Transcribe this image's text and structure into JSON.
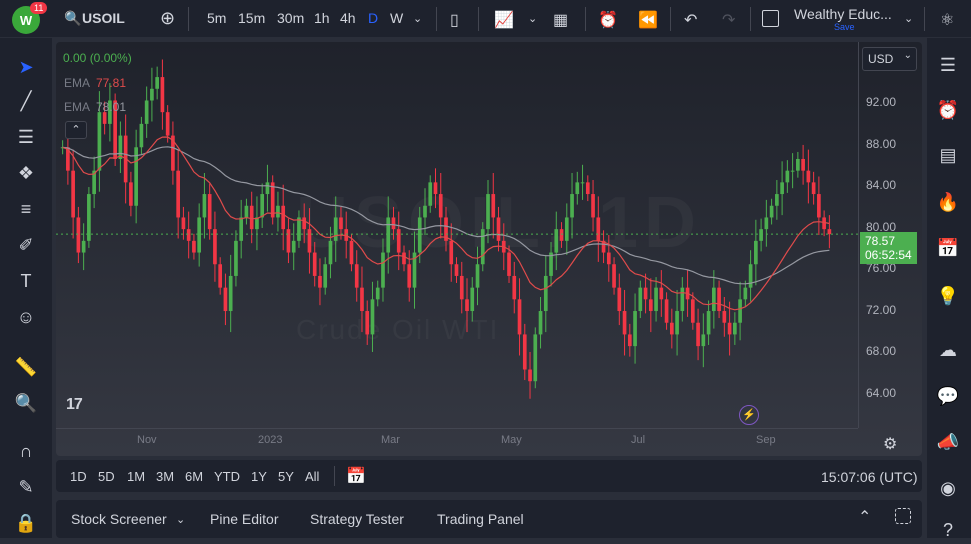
{
  "header": {
    "notification_count": "11",
    "symbol": "USOIL",
    "intervals": [
      "5m",
      "15m",
      "30m",
      "1h",
      "4h",
      "D",
      "W"
    ],
    "active_interval": "D",
    "layout_name": "Wealthy Educ...",
    "save_label": "Save"
  },
  "legend": {
    "change": "0.00 (0.00%)",
    "ema1_label": "EMA",
    "ema1_value": "77.81",
    "ema2_label": "EMA",
    "ema2_value": "78.01"
  },
  "price_axis": {
    "currency": "USD",
    "labels": [
      "92.00",
      "88.00",
      "84.00",
      "80.00",
      "76.00",
      "72.00",
      "68.00",
      "64.00"
    ],
    "current_price": "78.57",
    "countdown": "06:52:54"
  },
  "time_axis": {
    "labels": [
      "Nov",
      "2023",
      "Mar",
      "May",
      "Jul",
      "Sep"
    ]
  },
  "timeframes": [
    "1D",
    "5D",
    "1M",
    "3M",
    "6M",
    "YTD",
    "1Y",
    "5Y",
    "All"
  ],
  "clock": "15:07:06 (UTC)",
  "panels": [
    "Stock Screener",
    "Pine Editor",
    "Strategy Tester",
    "Trading Panel"
  ],
  "watermark": {
    "line1": "USOIL, 1D",
    "line2": "Crude Oil WTI"
  },
  "colors": {
    "up": "#26a69a",
    "up_bright": "#4caf50",
    "down": "#f23645",
    "ema_fast": "#e04b4b",
    "ema_slow": "#9598a1",
    "price_tag": "#4caf50"
  },
  "chart_data": {
    "type": "candlestick",
    "ylim": [
      62,
      95
    ],
    "close": [
      86,
      84,
      80,
      77,
      78,
      82,
      84,
      89,
      88,
      90,
      85,
      87,
      83,
      81,
      86,
      88,
      90,
      91,
      92,
      89,
      87,
      84,
      80,
      79,
      78,
      77,
      80,
      82,
      79,
      76,
      74,
      72,
      75,
      78,
      80,
      81,
      79,
      80,
      82,
      83,
      80,
      81,
      79,
      77,
      78,
      80,
      79,
      77,
      75,
      74,
      76,
      78,
      80,
      79,
      78,
      76,
      74,
      72,
      70,
      73,
      74,
      77,
      80,
      79,
      77,
      76,
      74,
      77,
      80,
      81,
      83,
      82,
      80,
      78,
      76,
      75,
      73,
      72,
      74,
      76,
      79,
      82,
      80,
      78,
      77,
      75,
      73,
      70,
      67,
      66,
      70,
      72,
      75,
      77,
      79,
      78,
      80,
      82,
      83,
      83,
      82,
      80,
      78,
      77,
      76,
      74,
      72,
      70,
      69,
      72,
      74,
      73,
      72,
      74,
      73,
      71,
      70,
      72,
      74,
      73,
      71,
      69,
      70,
      72,
      74,
      72,
      71,
      70,
      71,
      73,
      74,
      76,
      78,
      79,
      80,
      81,
      82,
      83,
      84,
      84,
      85,
      84,
      83,
      82,
      80,
      79,
      78.57
    ]
  }
}
